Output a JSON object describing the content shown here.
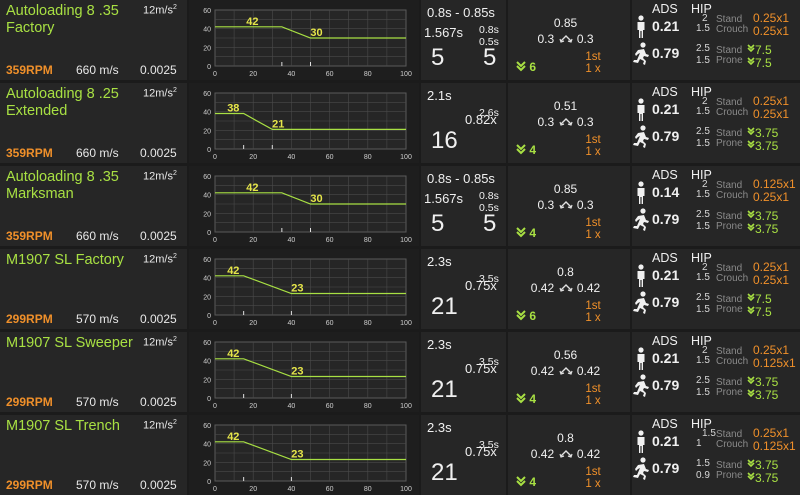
{
  "rows": [
    {
      "name": "Autoloading 8 .35 Factory",
      "gravity": "12m/s",
      "gravity_sup": "2",
      "rpm": "359RPM",
      "velocity": "660 m/s",
      "deviation": "0.0025",
      "damage": {
        "start": 42,
        "end": 30,
        "drop_start": 35,
        "drop_end": 50
      },
      "reload": {
        "line1": "0.8s - 0.85s",
        "left_time": "1.567s",
        "right_top": "0.8s",
        "right_bottom": "0.5s",
        "mag": "5",
        "mag_right": "5",
        "mult": ""
      },
      "recoil": {
        "up": "0.85",
        "left": "0.3",
        "right": "0.3",
        "decrease": "6",
        "first": "1st",
        "first_mult": "1 x"
      },
      "spread": {
        "ads_stand": "0.21",
        "ads_move": "0.79",
        "stand_top": "2",
        "stand_bot": "1.5",
        "move_top": "2.5",
        "move_bot": "1.5",
        "hip_stand": "0.25x1",
        "hip_crouch": "0.25x1",
        "hip_move": "7.5",
        "hip_prone": "7.5"
      }
    },
    {
      "name": "Autoloading 8 .25 Extended",
      "gravity": "12m/s",
      "gravity_sup": "2",
      "rpm": "359RPM",
      "velocity": "660 m/s",
      "deviation": "0.0025",
      "damage": {
        "start": 38,
        "end": 21,
        "drop_start": 15,
        "drop_end": 30
      },
      "reload": {
        "line1": "2.1s",
        "left_time": "",
        "right_top": "2.6s",
        "right_bottom": "",
        "mag": "16",
        "mag_right": "",
        "mult": "0.82x"
      },
      "recoil": {
        "up": "0.51",
        "left": "0.3",
        "right": "0.3",
        "decrease": "4",
        "first": "1st",
        "first_mult": "1 x"
      },
      "spread": {
        "ads_stand": "0.21",
        "ads_move": "0.79",
        "stand_top": "2",
        "stand_bot": "1.5",
        "move_top": "2.5",
        "move_bot": "1.5",
        "hip_stand": "0.25x1",
        "hip_crouch": "0.25x1",
        "hip_move": "3.75",
        "hip_prone": "3.75"
      }
    },
    {
      "name": "Autoloading 8 .35 Marksman",
      "gravity": "12m/s",
      "gravity_sup": "2",
      "rpm": "359RPM",
      "velocity": "660 m/s",
      "deviation": "0.0025",
      "damage": {
        "start": 42,
        "end": 30,
        "drop_start": 35,
        "drop_end": 50
      },
      "reload": {
        "line1": "0.8s - 0.85s",
        "left_time": "1.567s",
        "right_top": "0.8s",
        "right_bottom": "0.5s",
        "mag": "5",
        "mag_right": "5",
        "mult": ""
      },
      "recoil": {
        "up": "0.85",
        "left": "0.3",
        "right": "0.3",
        "decrease": "4",
        "first": "1st",
        "first_mult": "1 x"
      },
      "spread": {
        "ads_stand": "0.14",
        "ads_move": "0.79",
        "stand_top": "2",
        "stand_bot": "1.5",
        "move_top": "2.5",
        "move_bot": "1.5",
        "hip_stand": "0.125x1",
        "hip_crouch": "0.25x1",
        "hip_move": "3.75",
        "hip_prone": "3.75"
      }
    },
    {
      "name": "M1907 SL Factory",
      "gravity": "12m/s",
      "gravity_sup": "2",
      "rpm": "299RPM",
      "velocity": "570 m/s",
      "deviation": "0.0025",
      "damage": {
        "start": 42,
        "end": 23,
        "drop_start": 15,
        "drop_end": 40
      },
      "reload": {
        "line1": "2.3s",
        "left_time": "",
        "right_top": "3.5s",
        "right_bottom": "",
        "mag": "21",
        "mag_right": "",
        "mult": "0.75x"
      },
      "recoil": {
        "up": "0.8",
        "left": "0.42",
        "right": "0.42",
        "decrease": "6",
        "first": "1st",
        "first_mult": "1 x"
      },
      "spread": {
        "ads_stand": "0.21",
        "ads_move": "0.79",
        "stand_top": "2",
        "stand_bot": "1.5",
        "move_top": "2.5",
        "move_bot": "1.5",
        "hip_stand": "0.25x1",
        "hip_crouch": "0.25x1",
        "hip_move": "7.5",
        "hip_prone": "7.5"
      }
    },
    {
      "name": "M1907 SL Sweeper",
      "gravity": "12m/s",
      "gravity_sup": "2",
      "rpm": "299RPM",
      "velocity": "570 m/s",
      "deviation": "0.0025",
      "damage": {
        "start": 42,
        "end": 23,
        "drop_start": 15,
        "drop_end": 40
      },
      "reload": {
        "line1": "2.3s",
        "left_time": "",
        "right_top": "3.5s",
        "right_bottom": "",
        "mag": "21",
        "mag_right": "",
        "mult": "0.75x"
      },
      "recoil": {
        "up": "0.56",
        "left": "0.42",
        "right": "0.42",
        "decrease": "4",
        "first": "1st",
        "first_mult": "1 x"
      },
      "spread": {
        "ads_stand": "0.21",
        "ads_move": "0.79",
        "stand_top": "2",
        "stand_bot": "1.5",
        "move_top": "2.5",
        "move_bot": "1.5",
        "hip_stand": "0.25x1",
        "hip_crouch": "0.125x1",
        "hip_move": "3.75",
        "hip_prone": "3.75"
      }
    },
    {
      "name": "M1907 SL Trench",
      "gravity": "12m/s",
      "gravity_sup": "2",
      "rpm": "299RPM",
      "velocity": "570 m/s",
      "deviation": "0.0025",
      "damage": {
        "start": 42,
        "end": 23,
        "drop_start": 15,
        "drop_end": 40
      },
      "reload": {
        "line1": "2.3s",
        "left_time": "",
        "right_top": "3.5s",
        "right_bottom": "",
        "mag": "21",
        "mag_right": "",
        "mult": "0.75x"
      },
      "recoil": {
        "up": "0.8",
        "left": "0.42",
        "right": "0.42",
        "decrease": "4",
        "first": "1st",
        "first_mult": "1 x"
      },
      "spread": {
        "ads_stand": "0.21",
        "ads_move": "0.79",
        "stand_top": "1.5",
        "stand_bot": "1",
        "move_top": "1.5",
        "move_bot": "0.9",
        "hip_stand": "0.25x1",
        "hip_crouch": "0.125x1",
        "hip_move": "3.75",
        "hip_prone": "3.75"
      }
    }
  ],
  "labels": {
    "ads": "ADS",
    "hip": "HIP",
    "stand": "Stand",
    "crouch": "Crouch",
    "move": "Stand",
    "prone": "Prone"
  },
  "graph_axes": {
    "x_ticks": [
      "0",
      "20",
      "40",
      "60",
      "80",
      "100"
    ],
    "y_ticks": [
      "60",
      "40",
      "20",
      "0"
    ],
    "x_range": [
      0,
      100
    ],
    "y_range": [
      0,
      60
    ]
  },
  "colors": {
    "name": "#a8e043",
    "rpm": "#f0902a",
    "line": "#a8e043",
    "grid": "#4a4a4a"
  },
  "icons": {
    "stand": "person-standing-icon",
    "move": "person-running-icon",
    "recoil": "recoil-arrows-icon",
    "decrease": "double-chevron-down-icon"
  }
}
